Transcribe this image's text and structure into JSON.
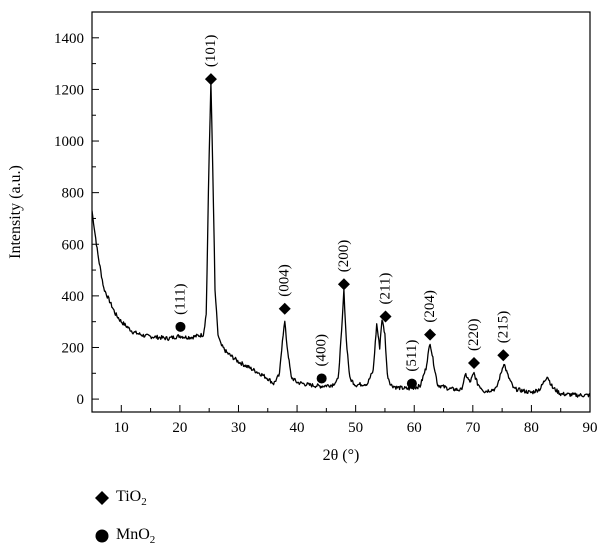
{
  "chart_data": {
    "type": "line",
    "xlabel": "2θ (°)",
    "ylabel": "Intensity (a.u.)",
    "xlim": [
      5,
      90
    ],
    "ylim": [
      -50,
      1500
    ],
    "x_ticks": [
      10,
      20,
      30,
      40,
      50,
      60,
      70,
      80,
      90
    ],
    "y_ticks": [
      0,
      200,
      400,
      600,
      800,
      1000,
      1200,
      1400
    ],
    "grid": false,
    "legend_placement": "bottom-left",
    "series": [
      {
        "x": [
          5,
          6,
          7,
          8,
          9,
          10,
          12,
          14,
          16,
          18,
          19,
          20,
          21,
          22,
          23,
          24,
          24.5,
          25,
          25.3,
          25.6,
          26,
          26.5,
          27,
          28,
          30,
          32,
          34,
          35,
          36,
          37,
          37.5,
          37.9,
          38.3,
          39,
          40,
          42,
          44,
          46,
          47,
          47.6,
          48,
          48.4,
          49,
          50,
          52,
          53,
          53.6,
          54.1,
          54.5,
          55,
          55.4,
          56,
          57,
          59,
          61,
          62,
          62.7,
          63.3,
          64,
          66,
          68,
          68.8,
          69.5,
          70.2,
          70.8,
          72,
          74,
          74.8,
          75.3,
          76,
          77,
          80,
          81.5,
          82.7,
          83.6,
          85,
          88,
          90
        ],
        "y": [
          730,
          560,
          430,
          380,
          330,
          300,
          260,
          245,
          240,
          235,
          240,
          245,
          240,
          240,
          245,
          250,
          330,
          950,
          1235,
          900,
          420,
          250,
          210,
          180,
          145,
          120,
          95,
          80,
          60,
          95,
          230,
          300,
          205,
          85,
          65,
          55,
          50,
          55,
          75,
          260,
          420,
          230,
          80,
          55,
          60,
          110,
          290,
          200,
          310,
          250,
          95,
          55,
          45,
          40,
          50,
          120,
          220,
          140,
          55,
          40,
          35,
          95,
          65,
          100,
          60,
          30,
          40,
          100,
          140,
          90,
          40,
          25,
          40,
          90,
          45,
          20,
          15,
          15
        ]
      }
    ],
    "peaks": [
      {
        "label": "(111)",
        "phase": "MnO2",
        "x": 20.1,
        "y": 280
      },
      {
        "label": "(101)",
        "phase": "TiO2",
        "x": 25.3,
        "y": 1240
      },
      {
        "label": "(004)",
        "phase": "TiO2",
        "x": 37.9,
        "y": 350
      },
      {
        "label": "(400)",
        "phase": "MnO2",
        "x": 44.2,
        "y": 80
      },
      {
        "label": "(200)",
        "phase": "TiO2",
        "x": 48.0,
        "y": 445
      },
      {
        "label": "(211)",
        "phase": "TiO2",
        "x": 55.1,
        "y": 320
      },
      {
        "label": "(511)",
        "phase": "MnO2",
        "x": 59.6,
        "y": 60
      },
      {
        "label": "(204)",
        "phase": "TiO2",
        "x": 62.7,
        "y": 250
      },
      {
        "label": "(220)",
        "phase": "TiO2",
        "x": 70.2,
        "y": 140
      },
      {
        "label": "(215)",
        "phase": "TiO2",
        "x": 75.2,
        "y": 170
      }
    ]
  },
  "legend": [
    {
      "phase": "TiO2",
      "symbol": "diamond",
      "base": "TiO",
      "sub": "2"
    },
    {
      "phase": "MnO2",
      "symbol": "circle",
      "base": "MnO",
      "sub": "2"
    }
  ]
}
